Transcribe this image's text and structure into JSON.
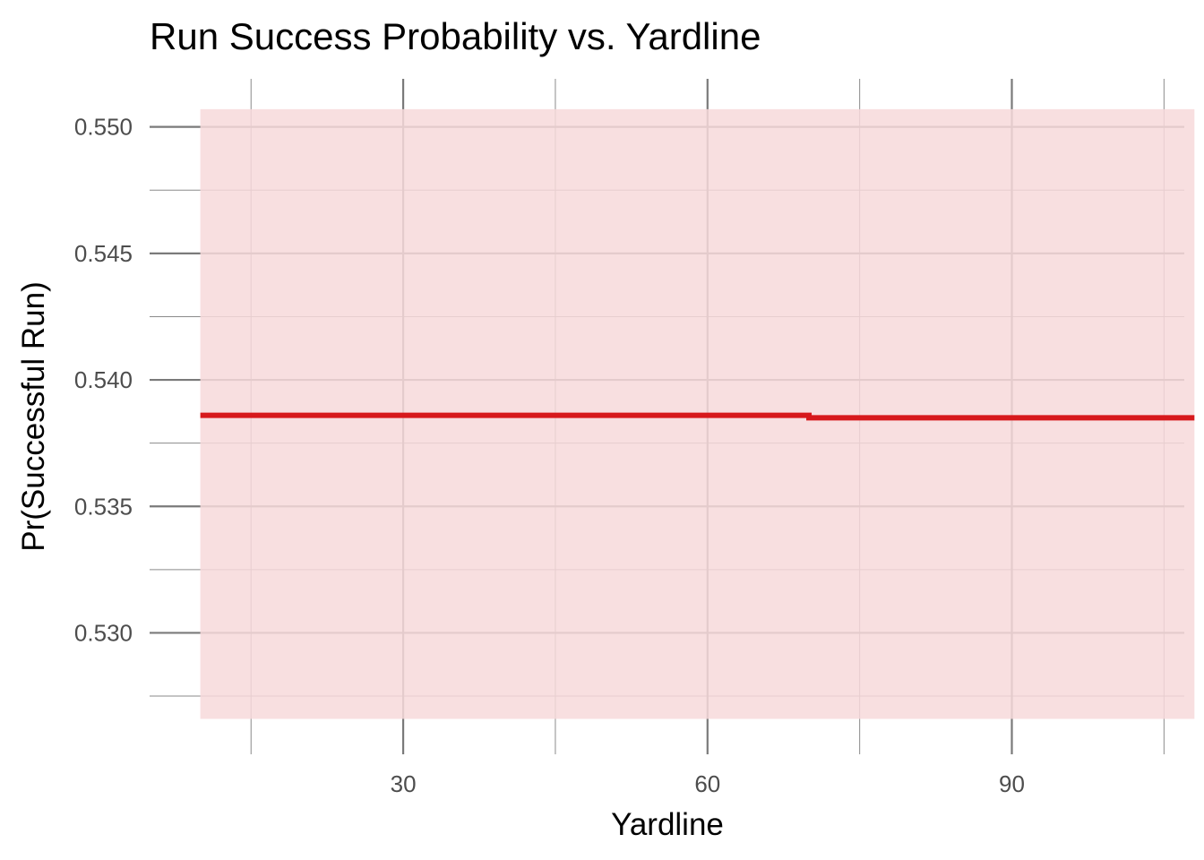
{
  "chart_data": {
    "type": "line",
    "title": "Run Success Probability vs. Yardline",
    "xlabel": "Yardline",
    "ylabel": "Pr(Successful Run)",
    "xlim": [
      5,
      107
    ],
    "ylim": [
      0.5252,
      0.5519
    ],
    "x_ticks": [
      30,
      60,
      90
    ],
    "x_tick_labels": [
      "30",
      "60",
      "90"
    ],
    "y_ticks": [
      0.53,
      0.535,
      0.54,
      0.545,
      0.55
    ],
    "y_tick_labels": [
      "0.530",
      "0.535",
      "0.540",
      "0.545",
      "0.550"
    ],
    "grid": true,
    "legend": "none",
    "series": [
      {
        "x": [
          10,
          70,
          70,
          108
        ],
        "y": [
          0.5386,
          0.5386,
          0.5385,
          0.5385
        ],
        "ymin": [
          0.5266,
          0.5266,
          0.5266,
          0.5266
        ],
        "ymax": [
          0.5507,
          0.5507,
          0.5507,
          0.5507
        ],
        "color": "#d7191c",
        "band_color": "#f7d9db"
      }
    ]
  }
}
